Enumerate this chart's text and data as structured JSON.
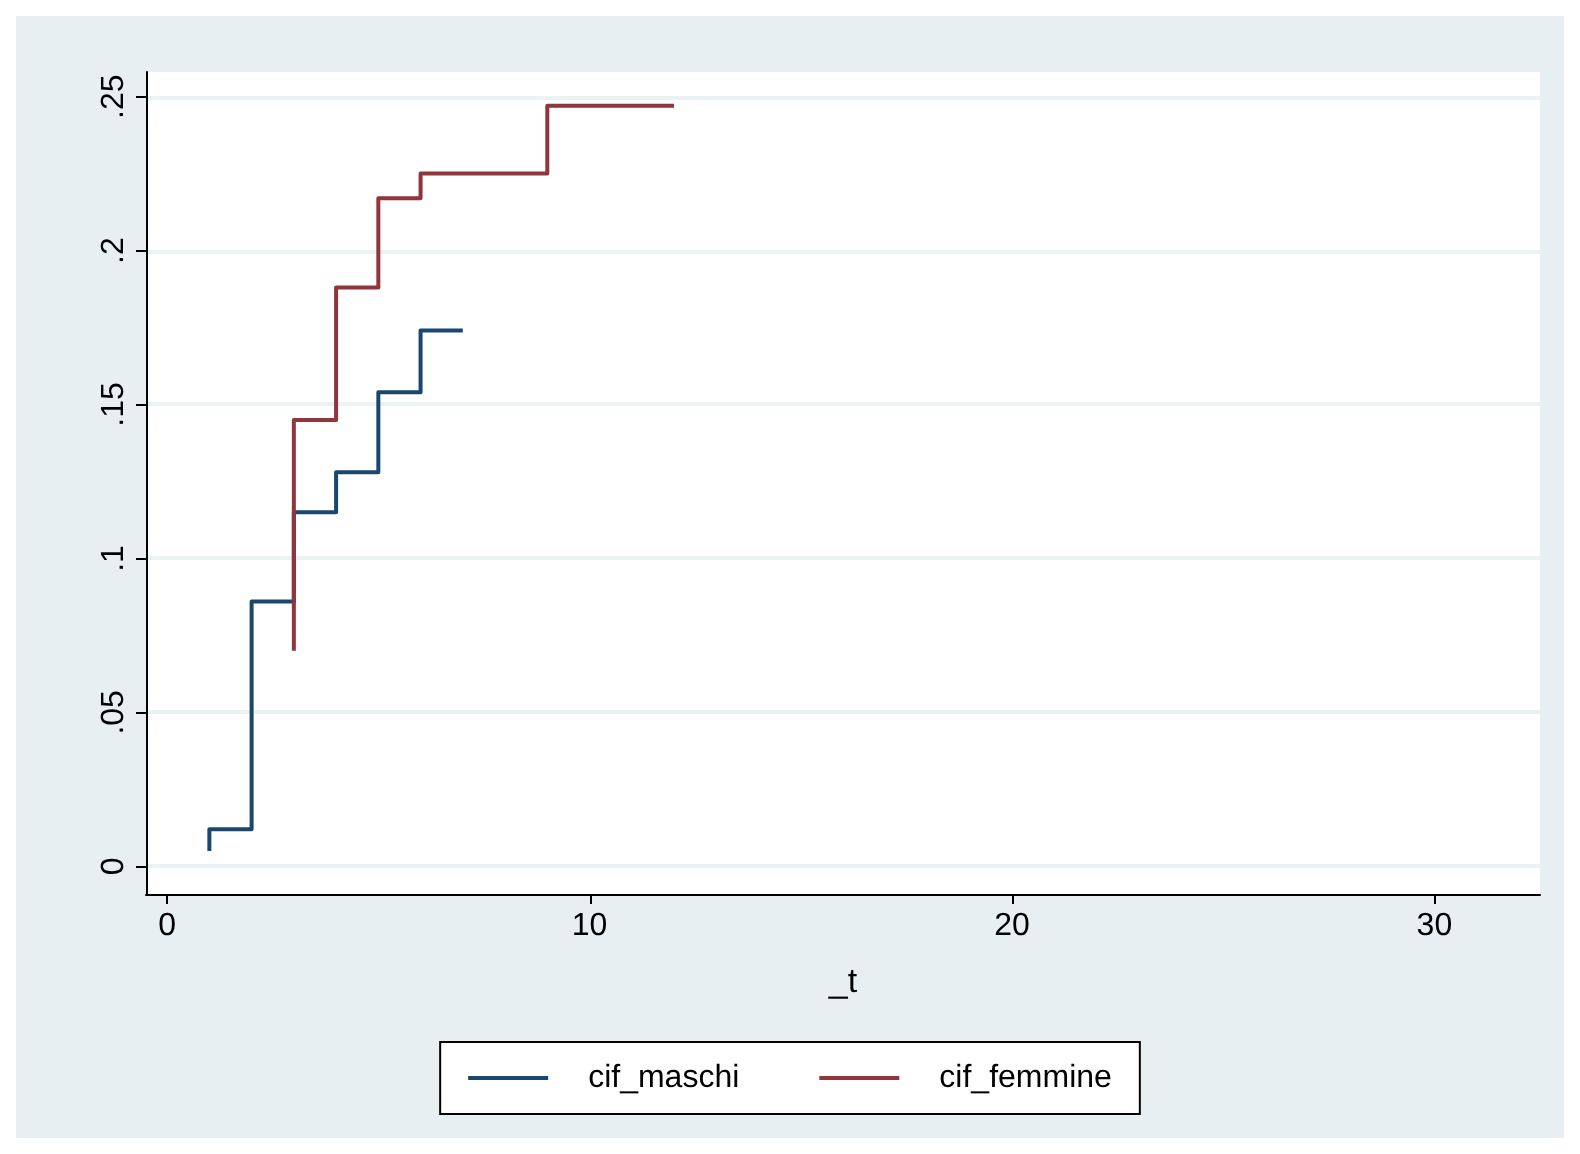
{
  "chart_data": {
    "type": "step",
    "xlabel": "_t",
    "xlim": [
      -0.5,
      32.5
    ],
    "xticks": [
      0,
      10,
      20,
      30
    ],
    "ylim": [
      -0.009,
      0.258
    ],
    "yticks": [
      {
        "value": 0,
        "label": "0"
      },
      {
        "value": 0.05,
        "label": ".05"
      },
      {
        "value": 0.1,
        "label": ".1"
      },
      {
        "value": 0.15,
        "label": ".15"
      },
      {
        "value": 0.2,
        "label": ".2"
      },
      {
        "value": 0.25,
        "label": ".25"
      }
    ],
    "grid": "y",
    "legend": "bottom",
    "series": [
      {
        "name": "cif_maschi",
        "color": "#1a476f",
        "x": [
          1,
          1,
          2,
          3,
          4,
          5,
          6,
          7
        ],
        "values": [
          0.005,
          0.012,
          0.086,
          0.115,
          0.128,
          0.154,
          0.174,
          0.174
        ]
      },
      {
        "name": "cif_femmine",
        "color": "#90353b",
        "x": [
          3,
          3,
          4,
          5,
          6,
          9,
          12
        ],
        "values": [
          0.07,
          0.145,
          0.188,
          0.217,
          0.225,
          0.247,
          0.247
        ]
      }
    ]
  }
}
